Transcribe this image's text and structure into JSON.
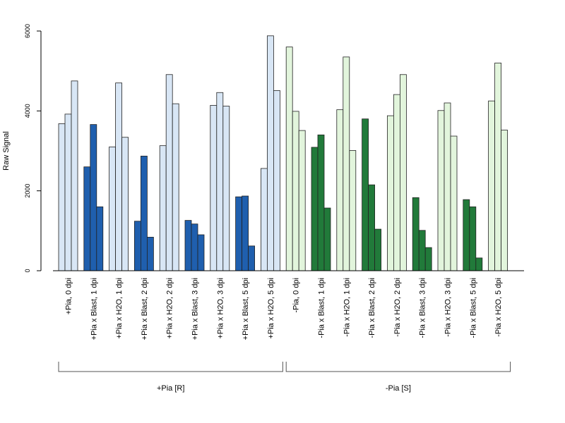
{
  "chart_data": {
    "type": "bar",
    "ylabel": "Raw Signal",
    "ylim": [
      0,
      6000
    ],
    "yticks": [
      "0",
      "2000",
      "4000",
      "6000"
    ],
    "categories": [
      "+Pia, 0 dpi",
      "+Pia x Blast, 1 dpi",
      "+Pia x H2O, 1 dpi",
      "+Pia x Blast, 2 dpi",
      "+Pia x H2O, 2 dpi",
      "+Pia x Blast, 3 dpi",
      "+Pia x H2O, 3 dpi",
      "+Pia x Blast, 5 dpi",
      "+Pia x H2O, 5 dpi",
      "-Pia, 0 dpi",
      "-Pia x Blast, 1 dpi",
      "-Pia x H2O, 1 dpi",
      "-Pia x Blast, 2 dpi",
      "-Pia x H2O, 2 dpi",
      "-Pia x Blast, 3 dpi",
      "-Pia x H2O, 3 dpi",
      "-Pia x Blast, 5 dpi",
      "-Pia x H2O, 5 dpi"
    ],
    "values": [
      [
        3680,
        3920,
        4750
      ],
      [
        2600,
        3660,
        1600
      ],
      [
        3100,
        4700,
        3340
      ],
      [
        1240,
        2870,
        840
      ],
      [
        3130,
        4910,
        4180
      ],
      [
        1260,
        1170,
        900
      ],
      [
        4140,
        4460,
        4120
      ],
      [
        1850,
        1870,
        620
      ],
      [
        2560,
        5880,
        4510
      ],
      [
        5600,
        3990,
        3510
      ],
      [
        3090,
        3400,
        1570
      ],
      [
        4030,
        5350,
        3010
      ],
      [
        3800,
        2150,
        1040
      ],
      [
        3880,
        4410,
        4910
      ],
      [
        1830,
        1010,
        580
      ],
      [
        4010,
        4200,
        3370
      ],
      [
        1780,
        1600,
        320
      ],
      [
        4250,
        5200,
        3520
      ]
    ],
    "fill_colors": [
      "#d8e6f5",
      "#1f5fae",
      "#d8e6f5",
      "#1f5fae",
      "#d8e6f5",
      "#1f5fae",
      "#d8e6f5",
      "#1f5fae",
      "#d8e6f5",
      "#e2f5dc",
      "#217a3a",
      "#e2f5dc",
      "#217a3a",
      "#e2f5dc",
      "#217a3a",
      "#e2f5dc",
      "#217a3a",
      "#e2f5dc"
    ],
    "groups": [
      {
        "label": "+Pia [R]",
        "from": 0,
        "to": 8
      },
      {
        "label": "-Pia [S]",
        "from": 9,
        "to": 17
      }
    ],
    "grid": false
  }
}
